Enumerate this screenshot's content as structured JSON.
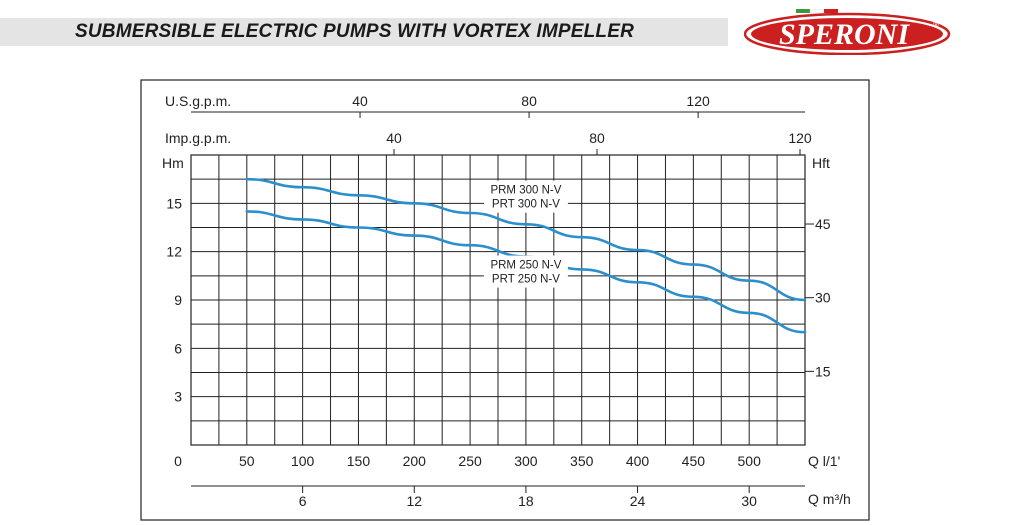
{
  "header": {
    "title": "SUBMERSIBLE ELECTRIC PUMPS WITH VORTEX IMPELLER",
    "brand": "SPERONI",
    "brand_mark": "®"
  },
  "chart_data": {
    "type": "line",
    "title": "",
    "x": [
      50,
      100,
      150,
      200,
      250,
      300,
      350,
      400,
      450,
      500,
      550
    ],
    "xlabel": "Q l/1'",
    "ylabel": "Hm",
    "xlim": [
      0,
      550
    ],
    "ylim": [
      0,
      18
    ],
    "grid": true,
    "series": [
      {
        "name": "PRM 300 N-V / PRT 300 N-V",
        "label_lines": [
          "PRM 300 N-V",
          "PRT 300 N-V"
        ],
        "color": "#2b8fcc",
        "values": [
          16.5,
          16.0,
          15.5,
          15.0,
          14.4,
          13.7,
          12.9,
          12.1,
          11.2,
          10.2,
          9.0
        ]
      },
      {
        "name": "PRM 250 N-V / PRT 250 N-V",
        "label_lines": [
          "PRM 250 N-V",
          "PRT 250 N-V"
        ],
        "color": "#2b8fcc",
        "values": [
          14.5,
          14.0,
          13.5,
          13.0,
          12.4,
          11.7,
          10.9,
          10.1,
          9.2,
          8.2,
          7.0
        ]
      }
    ],
    "axes": {
      "left": {
        "label": "Hm",
        "ticks": [
          {
            "v": 3,
            "t": "3"
          },
          {
            "v": 6,
            "t": "6"
          },
          {
            "v": 9,
            "t": "9"
          },
          {
            "v": 12,
            "t": "12"
          },
          {
            "v": 15,
            "t": "15"
          }
        ]
      },
      "right": {
        "label": "Hft",
        "ticks": [
          {
            "v": 15,
            "t": "15"
          },
          {
            "v": 30,
            "t": "30"
          },
          {
            "v": 45,
            "t": "45"
          }
        ]
      },
      "bottom_lpm": {
        "label": "Q l/1'",
        "ticks": [
          {
            "v": 0,
            "t": "0"
          },
          {
            "v": 50,
            "t": "50"
          },
          {
            "v": 100,
            "t": "100"
          },
          {
            "v": 150,
            "t": "150"
          },
          {
            "v": 200,
            "t": "200"
          },
          {
            "v": 250,
            "t": "250"
          },
          {
            "v": 300,
            "t": "300"
          },
          {
            "v": 350,
            "t": "350"
          },
          {
            "v": 400,
            "t": "400"
          },
          {
            "v": 450,
            "t": "450"
          },
          {
            "v": 500,
            "t": "500"
          }
        ]
      },
      "bottom_m3h": {
        "label": "Q m³/h",
        "ticks": [
          {
            "v": 6,
            "t": "6"
          },
          {
            "v": 12,
            "t": "12"
          },
          {
            "v": 18,
            "t": "18"
          },
          {
            "v": 24,
            "t": "24"
          },
          {
            "v": 30,
            "t": "30"
          }
        ]
      },
      "top_usgpm": {
        "label": "U.S.g.p.m.",
        "ticks": [
          {
            "v": 40,
            "t": "40"
          },
          {
            "v": 80,
            "t": "80"
          },
          {
            "v": 120,
            "t": "120"
          }
        ]
      },
      "top_impgpm": {
        "label": "Imp.g.p.m.",
        "ticks": [
          {
            "v": 40,
            "t": "40"
          },
          {
            "v": 80,
            "t": "80"
          },
          {
            "v": 120,
            "t": "120"
          }
        ]
      }
    }
  }
}
